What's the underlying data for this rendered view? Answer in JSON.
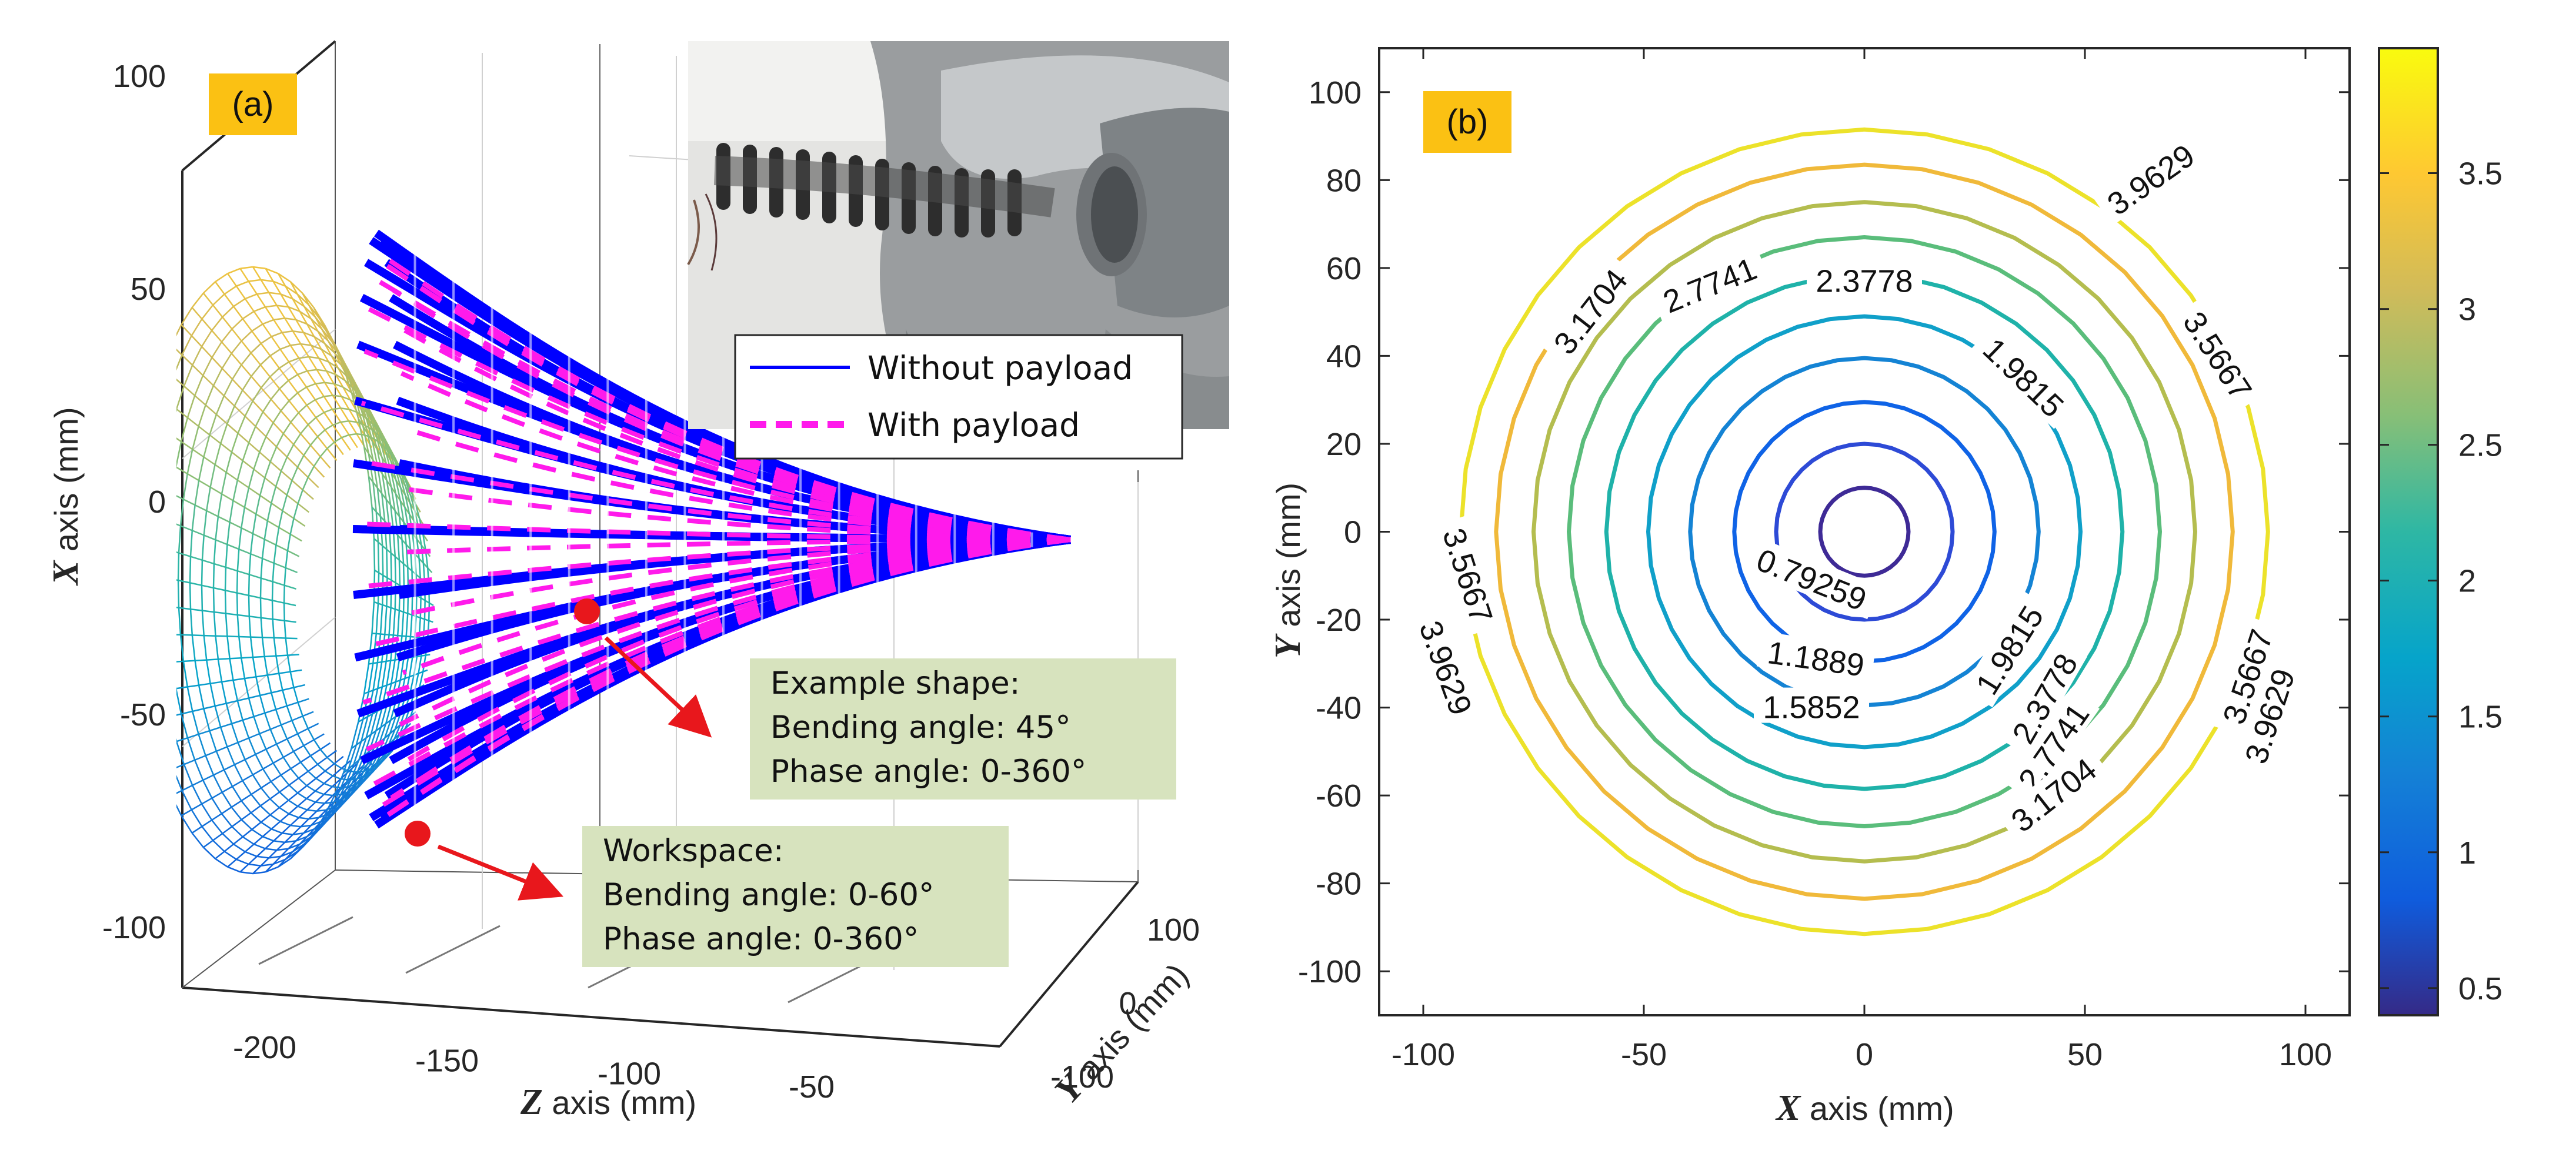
{
  "chart_data": [
    {
      "type": "3d-surface",
      "panel_label": "(a)",
      "axis_labels": {
        "x": {
          "var": "X",
          "unit": " axis (mm)"
        },
        "y": {
          "var": "Y",
          "unit": " axis (mm)"
        },
        "z": {
          "var": "Z",
          "unit": " axis (mm)"
        }
      },
      "x_ticks": [
        "100",
        "50",
        "0",
        "-50",
        "-100"
      ],
      "z_ticks": [
        "-200",
        "-150",
        "-100",
        "-50"
      ],
      "y_ticks": [
        "100",
        "0",
        "-100"
      ],
      "xlim": [
        -100,
        100
      ],
      "zlim": [
        -220,
        -10
      ],
      "ylim": [
        -100,
        100
      ],
      "workspace": {
        "bending_angle_max_deg": 60,
        "phase_angle_deg": [
          0,
          360
        ],
        "colormap": "parula"
      },
      "example_shape": {
        "bending_angle_deg": 45,
        "phase_angle_deg": [
          0,
          360
        ]
      },
      "legend": {
        "entries": [
          {
            "label": "Without payload",
            "color": "#0000ff",
            "style": "solid"
          },
          {
            "label": "With payload",
            "color": "#ff1aeb",
            "style": "dashed"
          }
        ],
        "placement": "top-right"
      },
      "annotations": [
        {
          "lines": [
            "Example shape:",
            "Bending angle: 45°",
            "Phase angle: 0-360°"
          ]
        },
        {
          "lines": [
            "Workspace:",
            "Bending angle: 0-60°",
            "Phase angle: 0-360°"
          ]
        }
      ],
      "inset_photo": "photo of soft continuum robot mounted on a grey metal fixture"
    },
    {
      "type": "contour",
      "panel_label": "(b)",
      "xlabel": {
        "var": "X",
        "unit": " axis (mm)"
      },
      "ylabel": {
        "var": "Y",
        "unit": " axis (mm)"
      },
      "xlim": [
        -110,
        110
      ],
      "ylim": [
        -110,
        110
      ],
      "x_ticks": [
        "-100",
        "-50",
        "0",
        "50",
        "100"
      ],
      "y_ticks": [
        "100",
        "80",
        "60",
        "40",
        "20",
        "0",
        "-20",
        "-40",
        "-60",
        "-80",
        "-100"
      ],
      "levels": [
        {
          "value": 0.39629,
          "radius_mm": 10,
          "color": "#3e2a96"
        },
        {
          "value": 0.79259,
          "radius_mm": 20,
          "color": "#2d4ad6"
        },
        {
          "value": 1.1889,
          "radius_mm": 29.5,
          "color": "#0f63e6"
        },
        {
          "value": 1.5852,
          "radius_mm": 39.5,
          "color": "#1483d4"
        },
        {
          "value": 1.9815,
          "radius_mm": 49,
          "color": "#10a0c9"
        },
        {
          "value": 2.3778,
          "radius_mm": 58.5,
          "color": "#1fb2a9"
        },
        {
          "value": 2.7741,
          "radius_mm": 67,
          "color": "#5abd7b"
        },
        {
          "value": 3.1704,
          "radius_mm": 75,
          "color": "#b4bd4f"
        },
        {
          "value": 3.5667,
          "radius_mm": 83.5,
          "color": "#f0b93a"
        },
        {
          "value": 3.9629,
          "radius_mm": 91.5,
          "color": "#ece22a"
        }
      ],
      "contour_labels": [
        {
          "text": "3.9629",
          "x": 65,
          "y": 80,
          "angle": -35
        },
        {
          "text": "3.5667",
          "x": 80,
          "y": 40,
          "angle": 57
        },
        {
          "text": "3.1704",
          "x": -62,
          "y": 50,
          "angle": -52
        },
        {
          "text": "2.7741",
          "x": -35,
          "y": 56,
          "angle": -22
        },
        {
          "text": "2.3778",
          "x": 0,
          "y": 57,
          "angle": 0
        },
        {
          "text": "1.9815",
          "x": 36,
          "y": 35,
          "angle": 44
        },
        {
          "text": "0.79259",
          "x": -12,
          "y": -11,
          "angle": 22
        },
        {
          "text": "1.1889",
          "x": -11,
          "y": -29,
          "angle": 8
        },
        {
          "text": "1.5852",
          "x": -12,
          "y": -40,
          "angle": 0
        },
        {
          "text": "1.9815",
          "x": 33,
          "y": -27,
          "angle": -58
        },
        {
          "text": "2.3778",
          "x": 41,
          "y": -38,
          "angle": -60
        },
        {
          "text": "2.7741",
          "x": 43,
          "y": -49,
          "angle": -55
        },
        {
          "text": "3.1704",
          "x": 43,
          "y": -60,
          "angle": -38
        },
        {
          "text": "3.5667",
          "x": -90,
          "y": -10,
          "angle": 72
        },
        {
          "text": "3.9629",
          "x": -95,
          "y": -31,
          "angle": 70
        },
        {
          "text": "3.5667",
          "x": 87,
          "y": -33,
          "angle": -72
        },
        {
          "text": "3.9629",
          "x": 92,
          "y": -42,
          "angle": -72
        }
      ],
      "colorbar": {
        "range": [
          0.4,
          3.96
        ],
        "ticks": [
          "3.5",
          "3",
          "2.5",
          "2",
          "1.5",
          "1",
          "0.5"
        ],
        "tick_values": [
          3.5,
          3,
          2.5,
          2,
          1.5,
          1,
          0.5
        ],
        "colormap": "parula"
      }
    }
  ]
}
